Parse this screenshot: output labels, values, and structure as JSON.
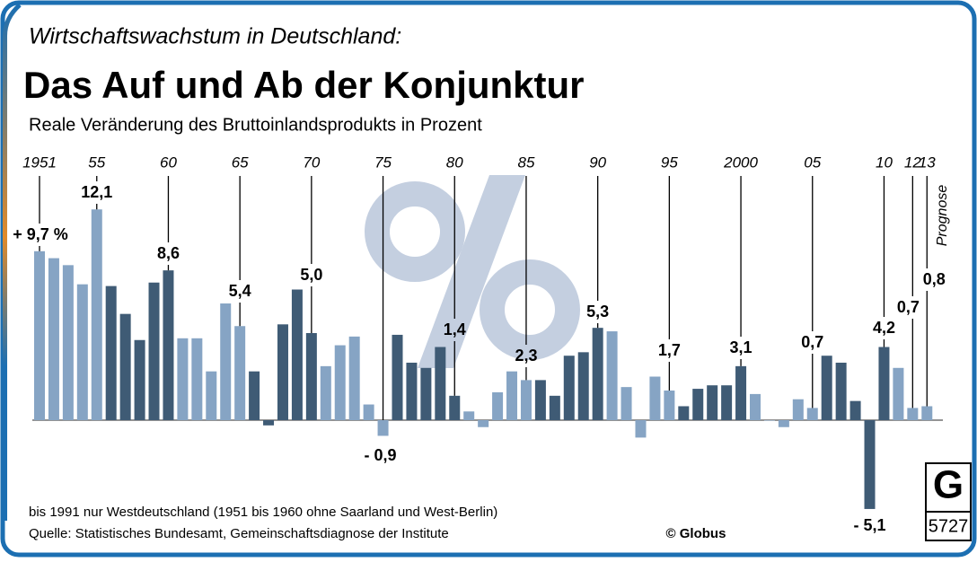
{
  "chart_data": {
    "type": "bar",
    "kicker": "Wirtschaftswachstum in Deutschland:",
    "title": "Das Auf und Ab der Konjunktur",
    "subtitle": "Reale Veränderung des Bruttoinlandsprodukts in Prozent",
    "categories": [
      "1951",
      null,
      null,
      null,
      "55",
      null,
      null,
      null,
      null,
      "60",
      null,
      null,
      null,
      null,
      "65",
      null,
      null,
      null,
      null,
      "70",
      null,
      null,
      null,
      null,
      "75",
      null,
      null,
      null,
      null,
      "80",
      null,
      null,
      null,
      null,
      "85",
      null,
      null,
      null,
      null,
      "90",
      null,
      null,
      null,
      null,
      "95",
      null,
      null,
      null,
      null,
      "2000",
      null,
      null,
      null,
      null,
      "05",
      null,
      null,
      null,
      null,
      "10",
      null,
      "12",
      "13"
    ],
    "values": [
      9.7,
      9.3,
      8.9,
      7.8,
      12.1,
      7.7,
      6.1,
      4.6,
      7.9,
      8.6,
      4.7,
      4.7,
      2.8,
      6.7,
      5.4,
      2.8,
      -0.3,
      5.5,
      7.5,
      5.0,
      3.1,
      4.3,
      4.8,
      0.9,
      -0.9,
      4.9,
      3.3,
      3.0,
      4.2,
      1.4,
      0.5,
      -0.4,
      1.6,
      2.8,
      2.3,
      2.3,
      1.4,
      3.7,
      3.9,
      5.3,
      5.1,
      1.9,
      -1.0,
      2.5,
      1.7,
      0.8,
      1.8,
      2.0,
      2.0,
      3.1,
      1.5,
      0.0,
      -0.4,
      1.2,
      0.7,
      3.7,
      3.3,
      1.1,
      -5.1,
      4.2,
      3.0,
      0.7,
      0.8
    ],
    "value_labels": [
      "+ 9,7 %",
      null,
      null,
      null,
      "12,1",
      null,
      null,
      null,
      null,
      "8,6",
      null,
      null,
      null,
      null,
      "5,4",
      null,
      null,
      null,
      null,
      "5,0",
      null,
      null,
      null,
      null,
      "- 0,9",
      null,
      null,
      null,
      null,
      "1,4",
      null,
      null,
      null,
      null,
      "2,3",
      null,
      null,
      null,
      null,
      "5,3",
      null,
      null,
      null,
      null,
      "1,7",
      null,
      null,
      null,
      null,
      "3,1",
      null,
      null,
      null,
      null,
      "0,7",
      null,
      null,
      null,
      "- 5,1",
      "4,2",
      null,
      "0,7",
      "0,8"
    ],
    "colors": [
      "#86a4c4",
      "#86a4c4",
      "#86a4c4",
      "#86a4c4",
      "#86a4c4",
      "#3f5b75",
      "#3f5b75",
      "#3f5b75",
      "#3f5b75",
      "#3f5b75",
      "#86a4c4",
      "#86a4c4",
      "#86a4c4",
      "#86a4c4",
      "#86a4c4",
      "#3f5b75",
      "#3f5b75",
      "#3f5b75",
      "#3f5b75",
      "#3f5b75",
      "#86a4c4",
      "#86a4c4",
      "#86a4c4",
      "#86a4c4",
      "#86a4c4",
      "#3f5b75",
      "#3f5b75",
      "#3f5b75",
      "#3f5b75",
      "#3f5b75",
      "#86a4c4",
      "#86a4c4",
      "#86a4c4",
      "#86a4c4",
      "#86a4c4",
      "#3f5b75",
      "#3f5b75",
      "#3f5b75",
      "#3f5b75",
      "#3f5b75",
      "#86a4c4",
      "#86a4c4",
      "#86a4c4",
      "#86a4c4",
      "#86a4c4",
      "#3f5b75",
      "#3f5b75",
      "#3f5b75",
      "#3f5b75",
      "#3f5b75",
      "#86a4c4",
      "#86a4c4",
      "#86a4c4",
      "#86a4c4",
      "#86a4c4",
      "#3f5b75",
      "#3f5b75",
      "#3f5b75",
      "#3f5b75",
      "#3f5b75",
      "#86a4c4",
      "#86a4c4",
      "#86a4c4"
    ],
    "forecast_label": "Prognose",
    "notes": [
      "bis 1991 nur Westdeutschland (1951 bis 1960 ohne Saarland und West-Berlin)",
      "Quelle: Statistisches Bundesamt, Gemeinschaftsdiagnose der Institute"
    ],
    "copyright": "© Globus",
    "logo_letter": "G",
    "logo_number": "5727"
  }
}
